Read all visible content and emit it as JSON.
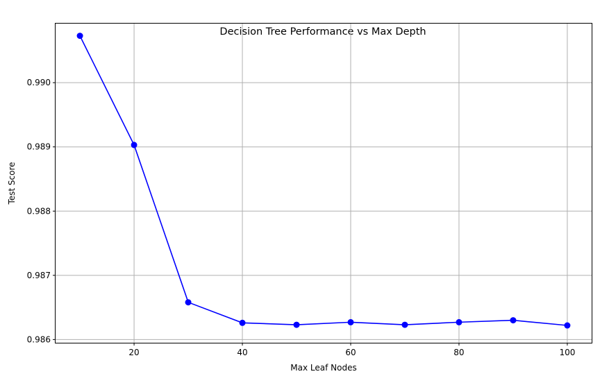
{
  "chart_data": {
    "type": "line",
    "title": "Decision Tree Performance vs Max Depth",
    "xlabel": "Max Leaf Nodes",
    "ylabel": "Test Score",
    "xlim": [
      5.5,
      104.5
    ],
    "ylim": [
      0.98595,
      0.99092
    ],
    "x_ticks": [
      20,
      40,
      60,
      80,
      100
    ],
    "y_ticks": [
      0.986,
      0.987,
      0.988,
      0.989,
      0.99
    ],
    "x_tick_labels": [
      "20",
      "40",
      "60",
      "80",
      "100"
    ],
    "y_tick_labels": [
      "0.986",
      "0.987",
      "0.988",
      "0.989",
      "0.990"
    ],
    "grid": true,
    "series": [
      {
        "color": "#0000ff",
        "marker": "circle",
        "x": [
          10,
          20,
          30,
          40,
          50,
          60,
          70,
          80,
          90,
          100
        ],
        "y": [
          0.99073,
          0.98903,
          0.98658,
          0.98626,
          0.98623,
          0.98627,
          0.98623,
          0.98627,
          0.9863,
          0.98622
        ]
      }
    ]
  },
  "colors": {
    "grid": "#b0b0b0",
    "axes": "#000000",
    "background": "#ffffff"
  }
}
